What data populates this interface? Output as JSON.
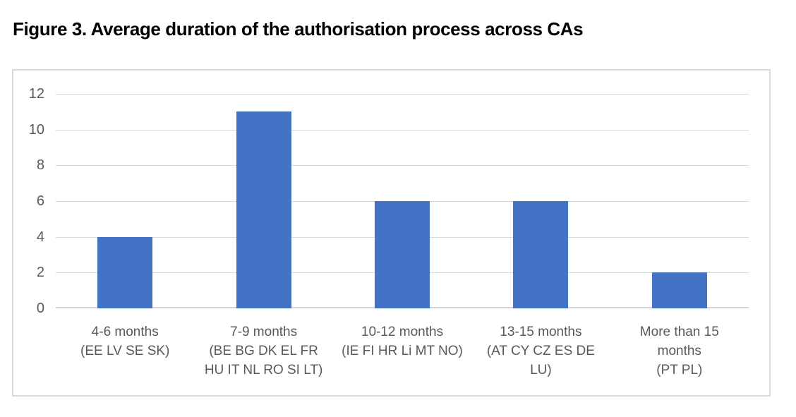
{
  "figure": {
    "title": "Figure 3. Average duration of the authorisation process across CAs"
  },
  "chart_data": {
    "type": "bar",
    "title": "Figure 3. Average duration of the authorisation process across CAs",
    "categories": [
      "4-6 months\n(EE LV SE SK)",
      "7-9 months\n(BE BG DK EL FR\nHU IT NL RO SI LT)",
      "10-12 months\n(IE FI HR Li MT NO)",
      "13-15 months\n(AT CY CZ ES DE\nLU)",
      "More than 15\nmonths\n(PT PL)"
    ],
    "values": [
      4,
      11,
      6,
      6,
      2
    ],
    "xlabel": "",
    "ylabel": "",
    "ylim": [
      0,
      12
    ],
    "ytick_step": 2,
    "grid": true,
    "legend": "none",
    "colors": {
      "bar": "#4472c4",
      "gridline": "#d9d9d9",
      "axis_line": "#d3d3d3",
      "frame_border": "#d9d9d9",
      "tick_label": "#595959",
      "title": "#000000",
      "background": "#ffffff"
    }
  }
}
